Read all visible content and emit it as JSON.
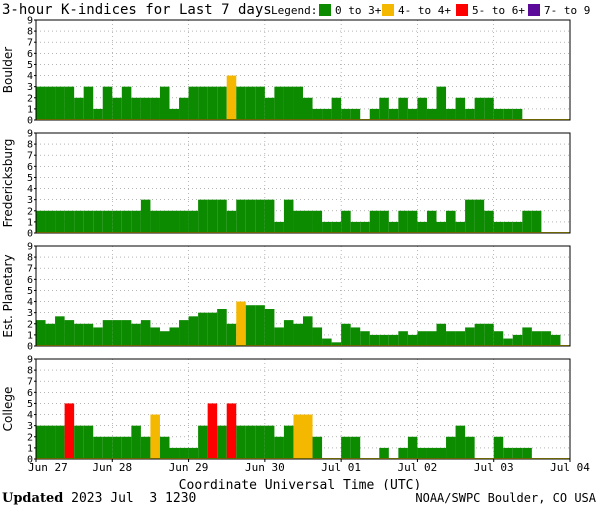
{
  "title": "3-hour K-indices for Last 7 days",
  "legend": {
    "label": "Legend:",
    "items": [
      {
        "label": "0 to 3+",
        "color": "#0c8a00"
      },
      {
        "label": "4- to 4+",
        "color": "#f5b800"
      },
      {
        "label": "5- to 6+",
        "color": "#ff0000"
      },
      {
        "label": "7- to 9",
        "color": "#5b0a9a"
      }
    ]
  },
  "footer": {
    "updated_label": "Updated",
    "updated_value": "2023 Jul  3 1230",
    "source": "NOAA/SWPC Boulder, CO USA"
  },
  "chart_data": {
    "type": "bar",
    "xlabel": "Coordinate Universal Time (UTC)",
    "x_ticks": [
      "Jun 27",
      "Jun 28",
      "Jun 29",
      "Jun 30",
      "Jul 01",
      "Jul 02",
      "Jul 03",
      "Jul 04"
    ],
    "ylim": [
      0,
      9
    ],
    "y_ticks": [
      0,
      1,
      2,
      3,
      4,
      5,
      6,
      7,
      8,
      9
    ],
    "grid": "dotted",
    "panels": [
      {
        "name": "Boulder",
        "values": [
          3,
          3,
          3,
          3,
          2,
          3,
          1,
          3,
          2,
          3,
          2,
          2,
          2,
          3,
          1,
          2,
          3,
          3,
          3,
          3,
          4,
          3,
          3,
          3,
          2,
          3,
          3,
          3,
          2,
          1,
          1,
          2,
          1,
          1,
          0,
          1,
          2,
          1,
          2,
          1,
          2,
          1,
          3,
          1,
          2,
          1,
          2,
          2,
          1,
          1,
          1,
          0,
          0,
          0,
          0,
          0
        ]
      },
      {
        "name": "Fredericksburg",
        "values": [
          2,
          2,
          2,
          2,
          2,
          2,
          2,
          2,
          2,
          2,
          2,
          3,
          2,
          2,
          2,
          2,
          2,
          3,
          3,
          3,
          2,
          3,
          3,
          3,
          3,
          1,
          3,
          2,
          2,
          2,
          1,
          1,
          2,
          1,
          1,
          2,
          2,
          1,
          2,
          2,
          1,
          2,
          1,
          2,
          1,
          3,
          3,
          2,
          1,
          1,
          1,
          2,
          2,
          0,
          0,
          0
        ]
      },
      {
        "name": "Est. Planetary",
        "values": [
          2.33,
          2.0,
          2.67,
          2.33,
          2.0,
          2.0,
          1.67,
          2.33,
          2.33,
          2.33,
          2.0,
          2.33,
          1.67,
          1.33,
          1.67,
          2.33,
          2.67,
          3.0,
          3.0,
          3.33,
          2.0,
          4.0,
          3.67,
          3.67,
          3.33,
          1.67,
          2.33,
          2.0,
          2.67,
          1.67,
          0.67,
          0.33,
          2.0,
          1.67,
          1.33,
          1.0,
          1.0,
          1.0,
          1.33,
          1.0,
          1.33,
          1.33,
          2.0,
          1.33,
          1.33,
          1.67,
          2.0,
          2.0,
          1.33,
          0.67,
          1.0,
          1.67,
          1.33,
          1.33,
          1.0,
          0
        ]
      },
      {
        "name": "College",
        "values": [
          3,
          3,
          3,
          5,
          3,
          3,
          2,
          2,
          2,
          2,
          3,
          2,
          4,
          2,
          1,
          1,
          1,
          3,
          5,
          3,
          5,
          3,
          3,
          3,
          3,
          2,
          3,
          4,
          4,
          2,
          0,
          0,
          2,
          2,
          0,
          0,
          1,
          0,
          1,
          2,
          1,
          1,
          1,
          2,
          3,
          2,
          0,
          0,
          2,
          1,
          1,
          1,
          0,
          0,
          0,
          0
        ]
      }
    ]
  }
}
